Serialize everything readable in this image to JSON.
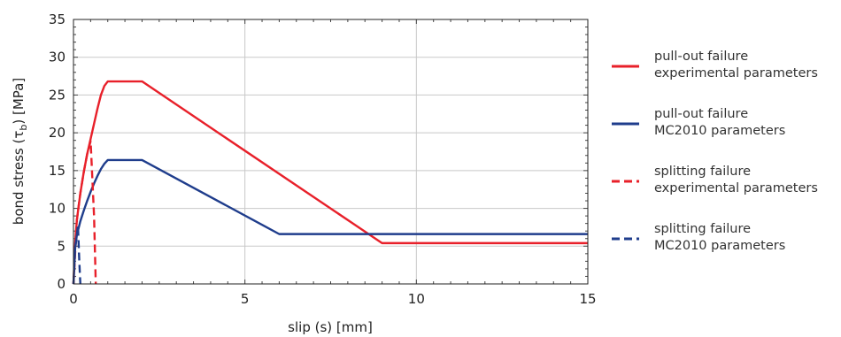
{
  "chart_data": {
    "type": "line",
    "xlabel": "slip (s) [mm]",
    "ylabel": "bond stress (τ",
    "ylabel_sub": "b",
    "ylabel_tail": ") [MPa]",
    "xlim": [
      0,
      15
    ],
    "ylim": [
      0,
      35
    ],
    "xticks": [
      0,
      5,
      10,
      15
    ],
    "yticks": [
      0,
      5,
      10,
      15,
      20,
      25,
      30,
      35
    ],
    "grid": true,
    "legend_position": "right",
    "series": [
      {
        "name_line1": "pull-out failure",
        "name_line2": "experimental parameters",
        "color": "#e8202a",
        "dash": "solid",
        "points": [
          [
            0,
            0
          ],
          [
            0.05,
            5.5
          ],
          [
            0.1,
            8.5
          ],
          [
            0.2,
            12
          ],
          [
            0.3,
            14.8
          ],
          [
            0.4,
            17.2
          ],
          [
            0.5,
            19.2
          ],
          [
            0.6,
            21.2
          ],
          [
            0.7,
            23.2
          ],
          [
            0.8,
            25
          ],
          [
            0.9,
            26.2
          ],
          [
            1,
            26.8
          ],
          [
            2,
            26.8
          ],
          [
            9,
            5.4
          ],
          [
            15,
            5.4
          ]
        ]
      },
      {
        "name_line1": "pull-out failure",
        "name_line2": "MC2010 parameters",
        "color": "#1f3d8c",
        "dash": "solid",
        "points": [
          [
            0,
            0
          ],
          [
            0.05,
            4.8
          ],
          [
            0.1,
            6.5
          ],
          [
            0.2,
            8.3
          ],
          [
            0.3,
            9.7
          ],
          [
            0.4,
            11
          ],
          [
            0.5,
            12.2
          ],
          [
            0.6,
            13.3
          ],
          [
            0.7,
            14.3
          ],
          [
            0.8,
            15.2
          ],
          [
            0.9,
            15.9
          ],
          [
            1,
            16.4
          ],
          [
            2,
            16.4
          ],
          [
            6,
            6.6
          ],
          [
            15,
            6.6
          ]
        ]
      },
      {
        "name_line1": "splitting failure",
        "name_line2": "experimental parameters",
        "color": "#e8202a",
        "dash": "dashed",
        "points": [
          [
            0,
            0
          ],
          [
            0.1,
            8.5
          ],
          [
            0.2,
            12
          ],
          [
            0.3,
            14.8
          ],
          [
            0.4,
            17.2
          ],
          [
            0.5,
            18.9
          ],
          [
            0.6,
            9
          ],
          [
            0.65,
            0
          ]
        ]
      },
      {
        "name_line1": "splitting failure",
        "name_line2": "MC2010 parameters",
        "color": "#1f3d8c",
        "dash": "dashed",
        "points": [
          [
            0,
            0
          ],
          [
            0.05,
            4.8
          ],
          [
            0.1,
            6.5
          ],
          [
            0.13,
            7.8
          ],
          [
            0.17,
            3
          ],
          [
            0.2,
            0
          ]
        ]
      }
    ]
  }
}
